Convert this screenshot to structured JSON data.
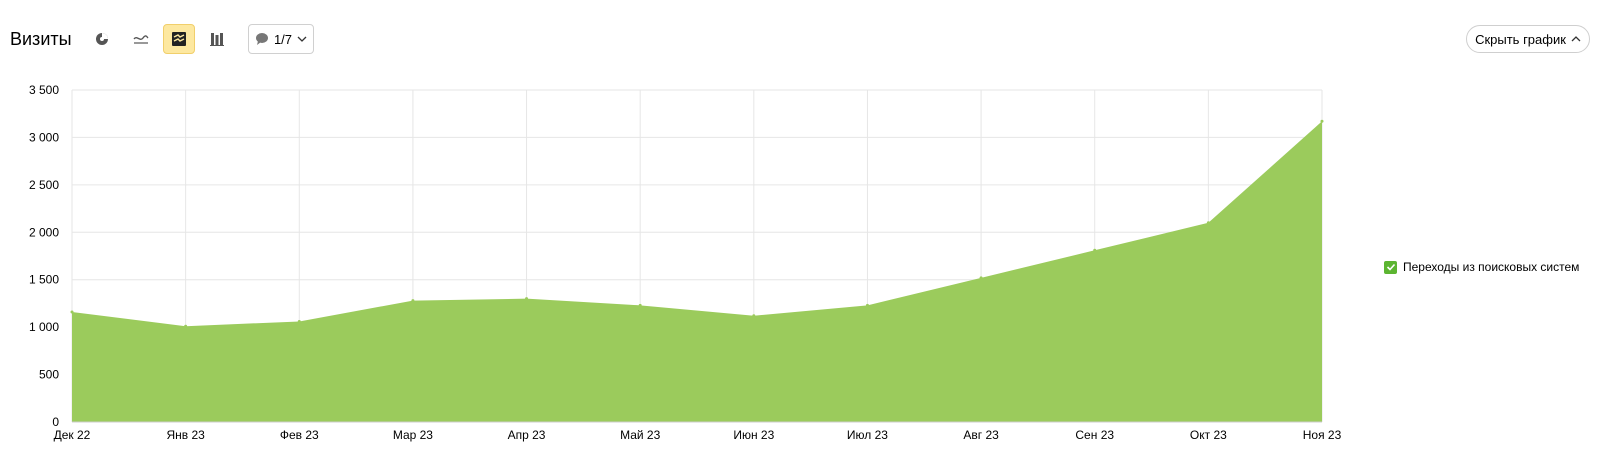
{
  "header": {
    "title": "Визиты",
    "counter_label": "1/7",
    "hide_chart_label": "Скрыть график",
    "icons": [
      "pie-chart-icon",
      "line-chart-icon",
      "area-chart-icon",
      "bar-chart-icon",
      "comment-icon",
      "chevron-down-icon",
      "chevron-up-icon"
    ],
    "active_chart_mode": "area"
  },
  "legend": {
    "items": [
      {
        "label": "Переходы из поисковых систем",
        "checked": true,
        "color": "#5cb531"
      }
    ]
  },
  "chart_data": {
    "type": "area",
    "categories": [
      "Дек 22",
      "Янв 23",
      "Фев 23",
      "Мар 23",
      "Апр 23",
      "Май 23",
      "Июн 23",
      "Июл 23",
      "Авг 23",
      "Сен 23",
      "Окт 23",
      "Ноя 23"
    ],
    "series": [
      {
        "name": "Переходы из поисковых систем",
        "values": [
          1160,
          1010,
          1060,
          1280,
          1300,
          1230,
          1120,
          1230,
          1520,
          1810,
          2100,
          3170
        ],
        "color": "#9bcb5c"
      }
    ],
    "ylim": [
      0,
      3500
    ],
    "yticks": [
      0,
      500,
      1000,
      1500,
      2000,
      2500,
      3000,
      3500
    ],
    "ytick_labels": [
      "0",
      "500",
      "1 000",
      "1 500",
      "2 000",
      "2 500",
      "3 000",
      "3 500"
    ],
    "grid": true,
    "legend_position": "right",
    "colors": {
      "fill": "#9bcb5c",
      "grid": "#e6e6e6",
      "active_button": "#fde8a0"
    }
  }
}
